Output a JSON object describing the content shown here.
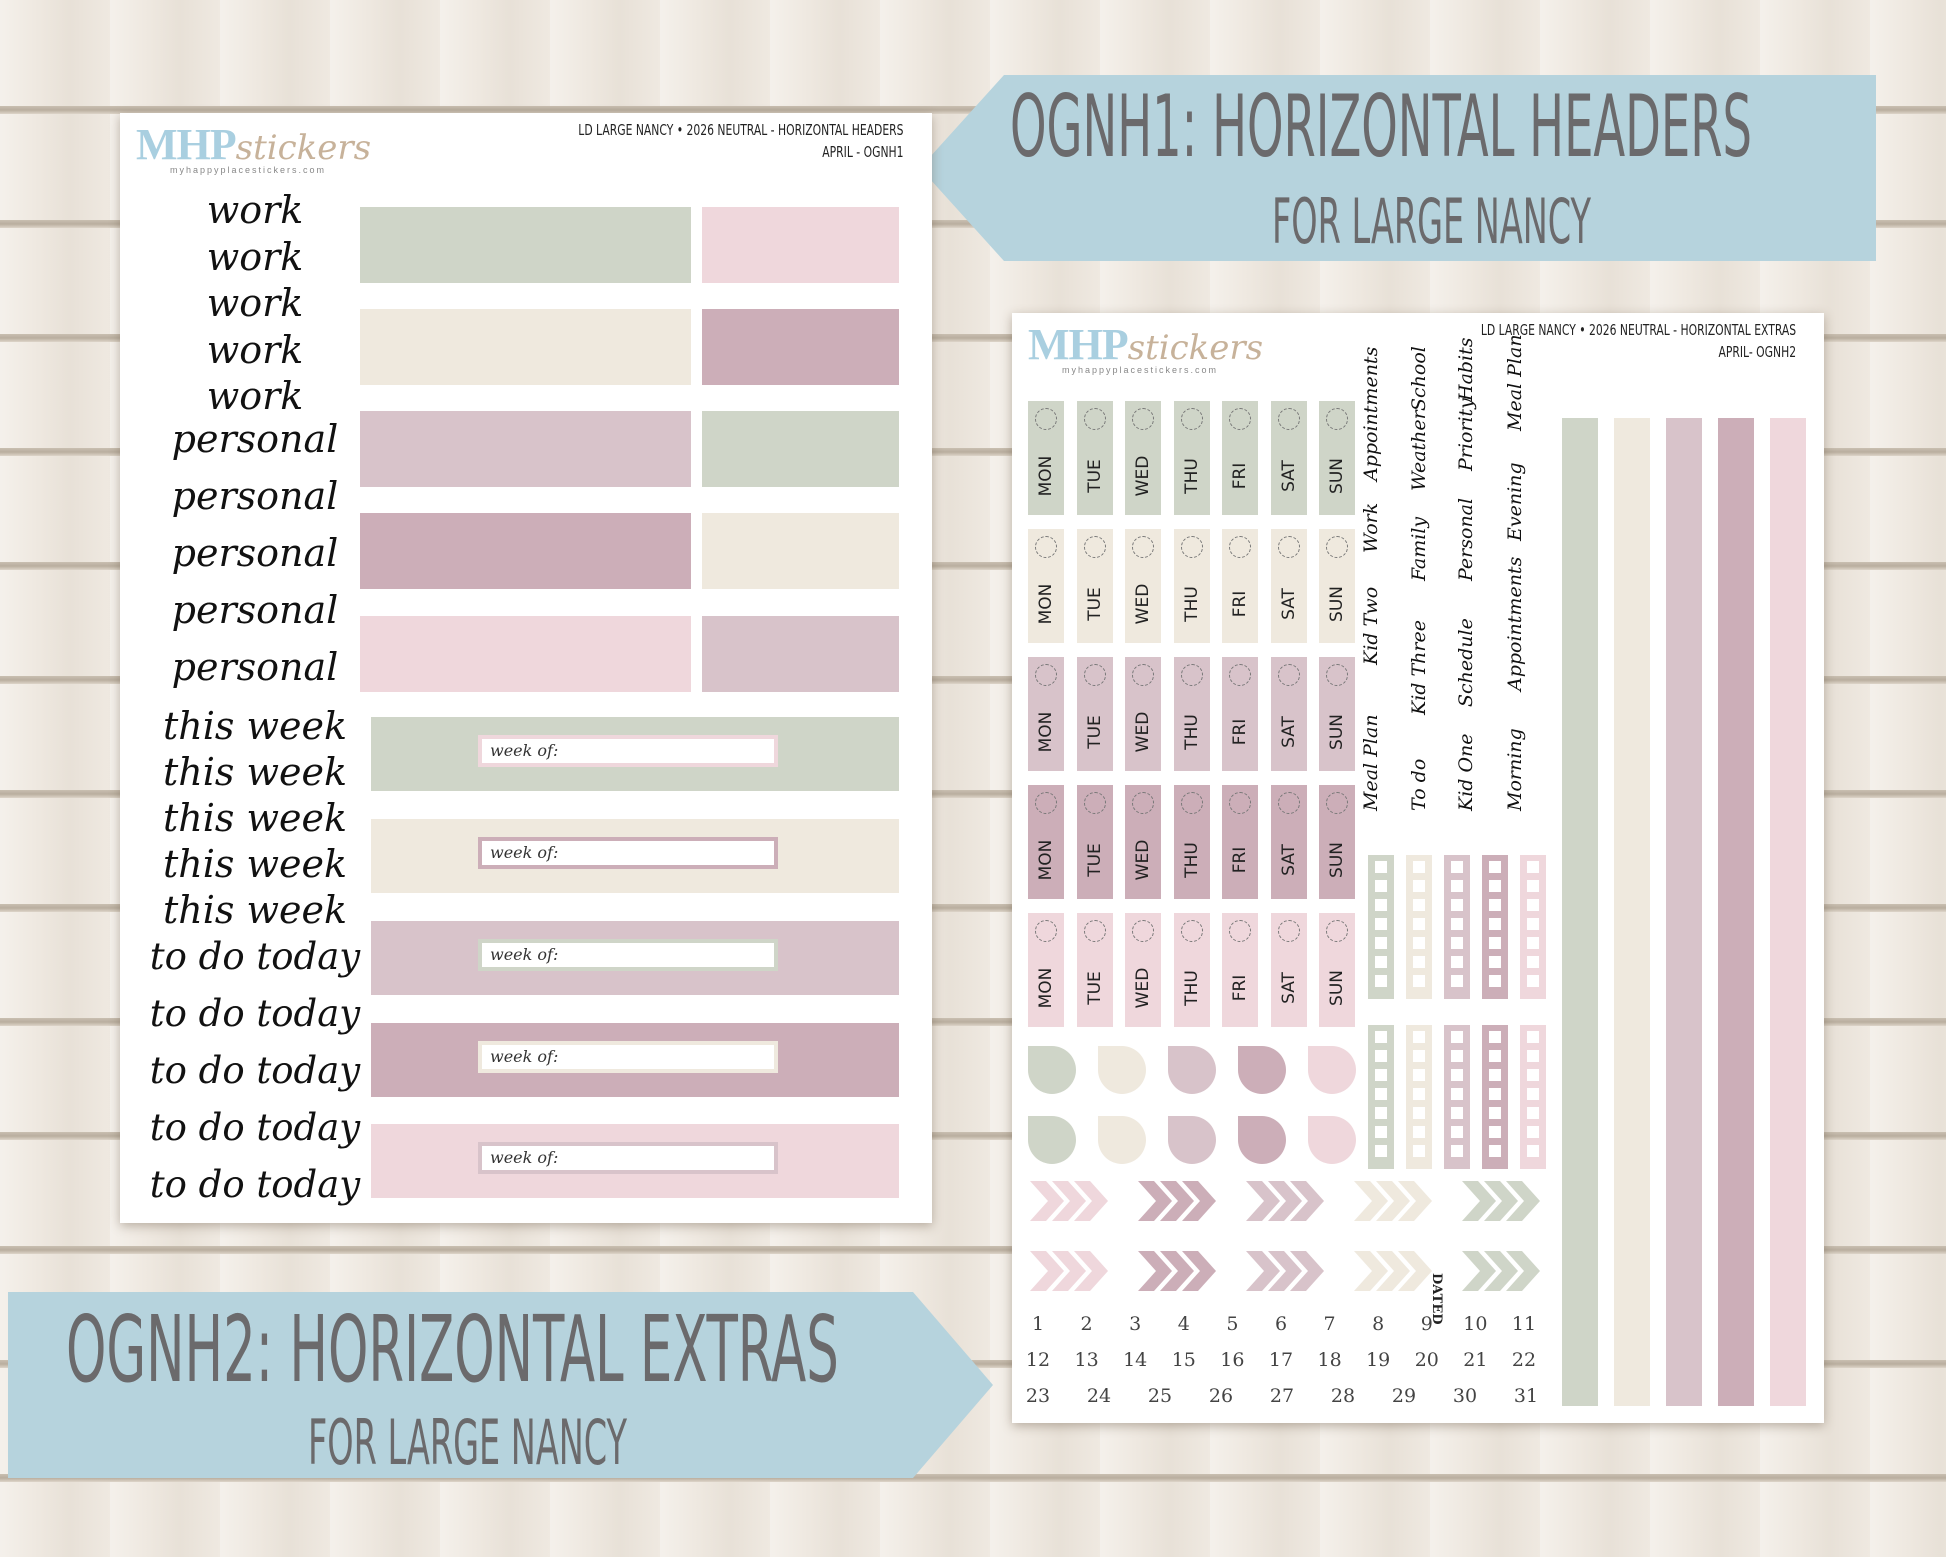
{
  "colors": {
    "sage": "#cfd5c8",
    "cream": "#efe9de",
    "mauve": "#d8c3ca",
    "plum": "#ccaeb8",
    "blush": "#efd7dc",
    "banner": "#b6d3dd",
    "banner_text": "#6b6a6c"
  },
  "banner_top": {
    "title": "OGNH1: HORIZONTAL HEADERS",
    "subtitle": "FOR LARGE NANCY"
  },
  "banner_bottom": {
    "title": "OGNH2: HORIZONTAL EXTRAS",
    "subtitle": "FOR LARGE NANCY"
  },
  "sheet1": {
    "logo_big": "MHP",
    "logo_small": "stickers",
    "logo_url": "myhappyplacestickers.com",
    "header_line1": "LD LARGE NANCY • 2026 NEUTRAL - HORIZONTAL HEADERS",
    "header_line2": "APRIL - OGNH1",
    "words": [
      "work",
      "work",
      "work",
      "work",
      "work",
      "personal",
      "personal",
      "personal",
      "personal",
      "personal",
      "this week",
      "this week",
      "this week",
      "this week",
      "this week",
      "to do today",
      "to do today",
      "to do today",
      "to do today",
      "to do today"
    ],
    "week_label": "week of:"
  },
  "sheet2": {
    "logo_big": "MHP",
    "logo_small": "stickers",
    "logo_url": "myhappyplacestickers.com",
    "header_line1": "LD LARGE NANCY • 2026 NEUTRAL - HORIZONTAL EXTRAS",
    "header_line2": "APRIL- OGNH2",
    "days": [
      "MON",
      "TUE",
      "WED",
      "THU",
      "FRI",
      "SAT",
      "SUN"
    ],
    "label_columns": [
      [
        "Meal Plan",
        "Kid Two",
        "Work",
        "Appointments"
      ],
      [
        "To do",
        "Kid Three",
        "Family",
        "Weather",
        "School"
      ],
      [
        "Kid One",
        "Schedule",
        "Personal",
        "Priority",
        "Habits"
      ],
      [
        "Morning",
        "Appointments",
        "Evening",
        "Meal Plan"
      ]
    ],
    "dated_label": "DATED",
    "numbers": [
      "1",
      "2",
      "3",
      "4",
      "5",
      "6",
      "7",
      "8",
      "9",
      "10",
      "11",
      "12",
      "13",
      "14",
      "15",
      "16",
      "17",
      "18",
      "19",
      "20",
      "21",
      "22",
      "23",
      "24",
      "25",
      "26",
      "27",
      "28",
      "29",
      "30",
      "31"
    ]
  }
}
